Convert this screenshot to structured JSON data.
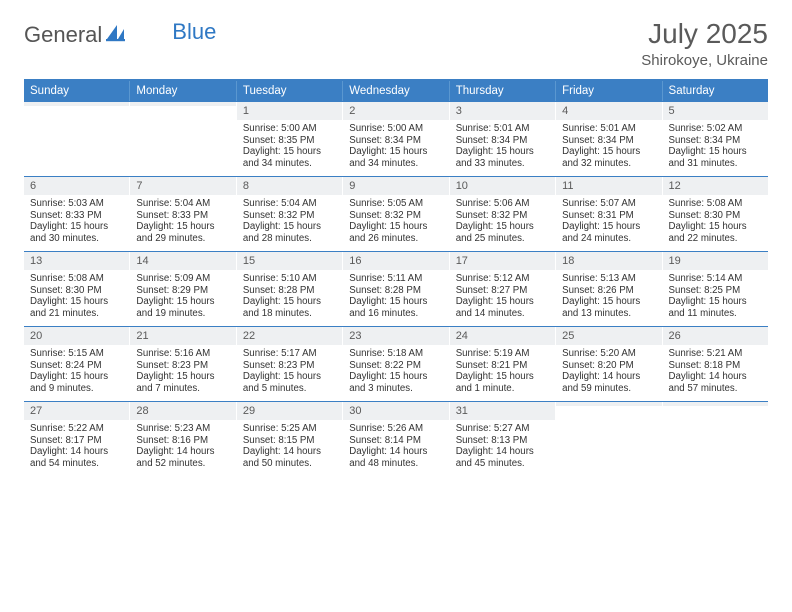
{
  "brand": {
    "part1": "General",
    "part2": "Blue"
  },
  "header": {
    "month_title": "July 2025",
    "location": "Shirokoye, Ukraine"
  },
  "colors": {
    "accent": "#3b7fc4",
    "header_row_bg": "#eef0f2"
  },
  "dow": [
    "Sunday",
    "Monday",
    "Tuesday",
    "Wednesday",
    "Thursday",
    "Friday",
    "Saturday"
  ],
  "weeks": [
    [
      {
        "blank": true
      },
      {
        "blank": true
      },
      {
        "num": "1",
        "sunrise": "Sunrise: 5:00 AM",
        "sunset": "Sunset: 8:35 PM",
        "daylight": "Daylight: 15 hours and 34 minutes."
      },
      {
        "num": "2",
        "sunrise": "Sunrise: 5:00 AM",
        "sunset": "Sunset: 8:34 PM",
        "daylight": "Daylight: 15 hours and 34 minutes."
      },
      {
        "num": "3",
        "sunrise": "Sunrise: 5:01 AM",
        "sunset": "Sunset: 8:34 PM",
        "daylight": "Daylight: 15 hours and 33 minutes."
      },
      {
        "num": "4",
        "sunrise": "Sunrise: 5:01 AM",
        "sunset": "Sunset: 8:34 PM",
        "daylight": "Daylight: 15 hours and 32 minutes."
      },
      {
        "num": "5",
        "sunrise": "Sunrise: 5:02 AM",
        "sunset": "Sunset: 8:34 PM",
        "daylight": "Daylight: 15 hours and 31 minutes."
      }
    ],
    [
      {
        "num": "6",
        "sunrise": "Sunrise: 5:03 AM",
        "sunset": "Sunset: 8:33 PM",
        "daylight": "Daylight: 15 hours and 30 minutes."
      },
      {
        "num": "7",
        "sunrise": "Sunrise: 5:04 AM",
        "sunset": "Sunset: 8:33 PM",
        "daylight": "Daylight: 15 hours and 29 minutes."
      },
      {
        "num": "8",
        "sunrise": "Sunrise: 5:04 AM",
        "sunset": "Sunset: 8:32 PM",
        "daylight": "Daylight: 15 hours and 28 minutes."
      },
      {
        "num": "9",
        "sunrise": "Sunrise: 5:05 AM",
        "sunset": "Sunset: 8:32 PM",
        "daylight": "Daylight: 15 hours and 26 minutes."
      },
      {
        "num": "10",
        "sunrise": "Sunrise: 5:06 AM",
        "sunset": "Sunset: 8:32 PM",
        "daylight": "Daylight: 15 hours and 25 minutes."
      },
      {
        "num": "11",
        "sunrise": "Sunrise: 5:07 AM",
        "sunset": "Sunset: 8:31 PM",
        "daylight": "Daylight: 15 hours and 24 minutes."
      },
      {
        "num": "12",
        "sunrise": "Sunrise: 5:08 AM",
        "sunset": "Sunset: 8:30 PM",
        "daylight": "Daylight: 15 hours and 22 minutes."
      }
    ],
    [
      {
        "num": "13",
        "sunrise": "Sunrise: 5:08 AM",
        "sunset": "Sunset: 8:30 PM",
        "daylight": "Daylight: 15 hours and 21 minutes."
      },
      {
        "num": "14",
        "sunrise": "Sunrise: 5:09 AM",
        "sunset": "Sunset: 8:29 PM",
        "daylight": "Daylight: 15 hours and 19 minutes."
      },
      {
        "num": "15",
        "sunrise": "Sunrise: 5:10 AM",
        "sunset": "Sunset: 8:28 PM",
        "daylight": "Daylight: 15 hours and 18 minutes."
      },
      {
        "num": "16",
        "sunrise": "Sunrise: 5:11 AM",
        "sunset": "Sunset: 8:28 PM",
        "daylight": "Daylight: 15 hours and 16 minutes."
      },
      {
        "num": "17",
        "sunrise": "Sunrise: 5:12 AM",
        "sunset": "Sunset: 8:27 PM",
        "daylight": "Daylight: 15 hours and 14 minutes."
      },
      {
        "num": "18",
        "sunrise": "Sunrise: 5:13 AM",
        "sunset": "Sunset: 8:26 PM",
        "daylight": "Daylight: 15 hours and 13 minutes."
      },
      {
        "num": "19",
        "sunrise": "Sunrise: 5:14 AM",
        "sunset": "Sunset: 8:25 PM",
        "daylight": "Daylight: 15 hours and 11 minutes."
      }
    ],
    [
      {
        "num": "20",
        "sunrise": "Sunrise: 5:15 AM",
        "sunset": "Sunset: 8:24 PM",
        "daylight": "Daylight: 15 hours and 9 minutes."
      },
      {
        "num": "21",
        "sunrise": "Sunrise: 5:16 AM",
        "sunset": "Sunset: 8:23 PM",
        "daylight": "Daylight: 15 hours and 7 minutes."
      },
      {
        "num": "22",
        "sunrise": "Sunrise: 5:17 AM",
        "sunset": "Sunset: 8:23 PM",
        "daylight": "Daylight: 15 hours and 5 minutes."
      },
      {
        "num": "23",
        "sunrise": "Sunrise: 5:18 AM",
        "sunset": "Sunset: 8:22 PM",
        "daylight": "Daylight: 15 hours and 3 minutes."
      },
      {
        "num": "24",
        "sunrise": "Sunrise: 5:19 AM",
        "sunset": "Sunset: 8:21 PM",
        "daylight": "Daylight: 15 hours and 1 minute."
      },
      {
        "num": "25",
        "sunrise": "Sunrise: 5:20 AM",
        "sunset": "Sunset: 8:20 PM",
        "daylight": "Daylight: 14 hours and 59 minutes."
      },
      {
        "num": "26",
        "sunrise": "Sunrise: 5:21 AM",
        "sunset": "Sunset: 8:18 PM",
        "daylight": "Daylight: 14 hours and 57 minutes."
      }
    ],
    [
      {
        "num": "27",
        "sunrise": "Sunrise: 5:22 AM",
        "sunset": "Sunset: 8:17 PM",
        "daylight": "Daylight: 14 hours and 54 minutes."
      },
      {
        "num": "28",
        "sunrise": "Sunrise: 5:23 AM",
        "sunset": "Sunset: 8:16 PM",
        "daylight": "Daylight: 14 hours and 52 minutes."
      },
      {
        "num": "29",
        "sunrise": "Sunrise: 5:25 AM",
        "sunset": "Sunset: 8:15 PM",
        "daylight": "Daylight: 14 hours and 50 minutes."
      },
      {
        "num": "30",
        "sunrise": "Sunrise: 5:26 AM",
        "sunset": "Sunset: 8:14 PM",
        "daylight": "Daylight: 14 hours and 48 minutes."
      },
      {
        "num": "31",
        "sunrise": "Sunrise: 5:27 AM",
        "sunset": "Sunset: 8:13 PM",
        "daylight": "Daylight: 14 hours and 45 minutes."
      },
      {
        "blank": true
      },
      {
        "blank": true
      }
    ]
  ]
}
